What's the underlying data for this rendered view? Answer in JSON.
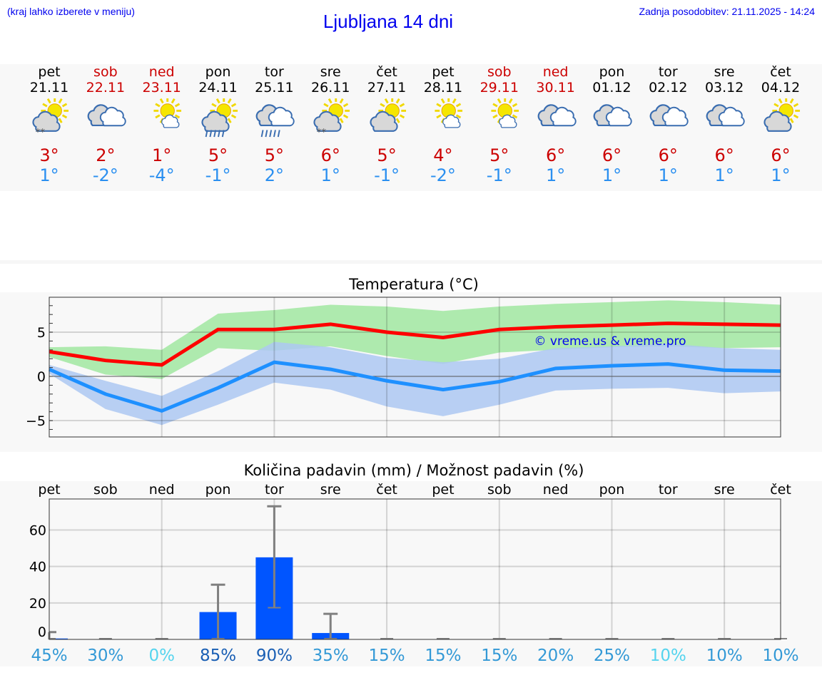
{
  "header": {
    "hint": "(kraj lahko izberete v meniju)",
    "title": "Ljubljana 14 dni",
    "updated": "Zadnja posodobitev: 21.11.2025 - 14:24"
  },
  "days": [
    {
      "name": "pet",
      "date": "21.11",
      "weekend": false,
      "icon": "sun-cloud-snow",
      "max": "3°",
      "min": "1°"
    },
    {
      "name": "sob",
      "date": "22.11",
      "weekend": true,
      "icon": "clouds",
      "max": "2°",
      "min": "-2°"
    },
    {
      "name": "ned",
      "date": "23.11",
      "weekend": true,
      "icon": "sun-small-cloud",
      "max": "1°",
      "min": "-4°"
    },
    {
      "name": "pon",
      "date": "24.11",
      "weekend": false,
      "icon": "sun-cloud-rain",
      "max": "5°",
      "min": "-1°"
    },
    {
      "name": "tor",
      "date": "25.11",
      "weekend": false,
      "icon": "clouds-rain",
      "max": "5°",
      "min": "2°"
    },
    {
      "name": "sre",
      "date": "26.11",
      "weekend": false,
      "icon": "sun-cloud-snow",
      "max": "6°",
      "min": "1°"
    },
    {
      "name": "čet",
      "date": "27.11",
      "weekend": false,
      "icon": "sun-cloud",
      "max": "5°",
      "min": "-1°"
    },
    {
      "name": "pet",
      "date": "28.11",
      "weekend": false,
      "icon": "sun-small-cloud",
      "max": "4°",
      "min": "-2°"
    },
    {
      "name": "sob",
      "date": "29.11",
      "weekend": true,
      "icon": "sun-small-cloud",
      "max": "5°",
      "min": "-1°"
    },
    {
      "name": "ned",
      "date": "30.11",
      "weekend": true,
      "icon": "clouds",
      "max": "6°",
      "min": "1°"
    },
    {
      "name": "pon",
      "date": "01.12",
      "weekend": false,
      "icon": "clouds",
      "max": "6°",
      "min": "1°"
    },
    {
      "name": "tor",
      "date": "02.12",
      "weekend": false,
      "icon": "clouds",
      "max": "6°",
      "min": "1°"
    },
    {
      "name": "sre",
      "date": "03.12",
      "weekend": false,
      "icon": "clouds",
      "max": "6°",
      "min": "1°"
    },
    {
      "name": "čet",
      "date": "04.12",
      "weekend": false,
      "icon": "sun-cloud",
      "max": "6°",
      "min": "1°"
    }
  ],
  "colors": {
    "max": "#ff0000",
    "min": "#1e90ff",
    "max_band": "#aeeaae",
    "min_band": "#adc8f2",
    "bar": "#0055ff",
    "err": "#808080",
    "weekend": "#cc0000"
  },
  "chart_data": [
    {
      "type": "line",
      "title": "Temperatura (°C)",
      "watermark": "© vreme.us & vreme.pro",
      "ylim": [
        -6.85,
        8.95
      ],
      "yticks": [
        -5,
        0,
        5
      ],
      "ytick_labels": [
        "−5",
        "0",
        "5"
      ],
      "grid": true,
      "series": [
        {
          "values": [
            2.8,
            1.8,
            1.3,
            5.3,
            5.3,
            5.9,
            5.0,
            4.4,
            5.3,
            5.6,
            5.8,
            6.0,
            5.9,
            5.8
          ],
          "band_upper": [
            3.3,
            3.4,
            3.0,
            7.1,
            7.5,
            8.1,
            7.9,
            7.4,
            7.9,
            8.2,
            8.4,
            8.6,
            8.4,
            8.1
          ],
          "band_lower": [
            2.2,
            0.2,
            -0.3,
            3.2,
            2.9,
            3.4,
            2.3,
            1.4,
            2.7,
            3.0,
            3.3,
            3.4,
            3.2,
            3.3
          ]
        },
        {
          "values": [
            0.8,
            -2.0,
            -3.9,
            -1.3,
            1.6,
            0.8,
            -0.5,
            -1.5,
            -0.6,
            0.9,
            1.2,
            1.4,
            0.7,
            0.6
          ],
          "band_upper": [
            1.3,
            -0.5,
            -2.2,
            0.6,
            3.9,
            3.3,
            2.1,
            1.6,
            2.0,
            3.2,
            3.4,
            3.7,
            3.2,
            3.0
          ],
          "band_lower": [
            0.3,
            -3.7,
            -5.5,
            -3.2,
            -0.7,
            -1.5,
            -3.4,
            -4.5,
            -3.2,
            -1.6,
            -1.4,
            -1.3,
            -1.9,
            -1.7
          ]
        }
      ]
    },
    {
      "type": "bar",
      "title": "Količina padavin (mm) / Možnost padavin (%)",
      "ylim": [
        0,
        77
      ],
      "yticks": [
        0,
        20,
        40,
        60
      ],
      "grid": true,
      "categories": [
        "pet",
        "sob",
        "ned",
        "pon",
        "tor",
        "sre",
        "čet",
        "pet",
        "sob",
        "ned",
        "pon",
        "tor",
        "sre",
        "čet"
      ],
      "values": [
        0.5,
        0,
        0,
        15,
        45,
        3.5,
        0,
        0,
        0,
        0,
        0,
        0,
        0,
        0
      ],
      "err_low": [
        0,
        0,
        0,
        0,
        17,
        0,
        0,
        0,
        0,
        0,
        0,
        0,
        0,
        0
      ],
      "err_high": [
        4,
        0,
        0,
        30,
        73,
        14,
        0,
        0,
        0,
        0,
        0,
        0,
        0,
        0
      ],
      "probability": [
        "45%",
        "30%",
        "0%",
        "85%",
        "90%",
        "35%",
        "15%",
        "15%",
        "15%",
        "20%",
        "25%",
        "10%",
        "10%",
        "10%"
      ],
      "probability_colors": [
        "#3399d6",
        "#3399d6",
        "#55d4ee",
        "#1a5fb4",
        "#1a5fb4",
        "#3399d6",
        "#3399d6",
        "#3399d6",
        "#3399d6",
        "#3399d6",
        "#3399d6",
        "#55d4ee",
        "#3399d6",
        "#3399d6"
      ]
    }
  ]
}
